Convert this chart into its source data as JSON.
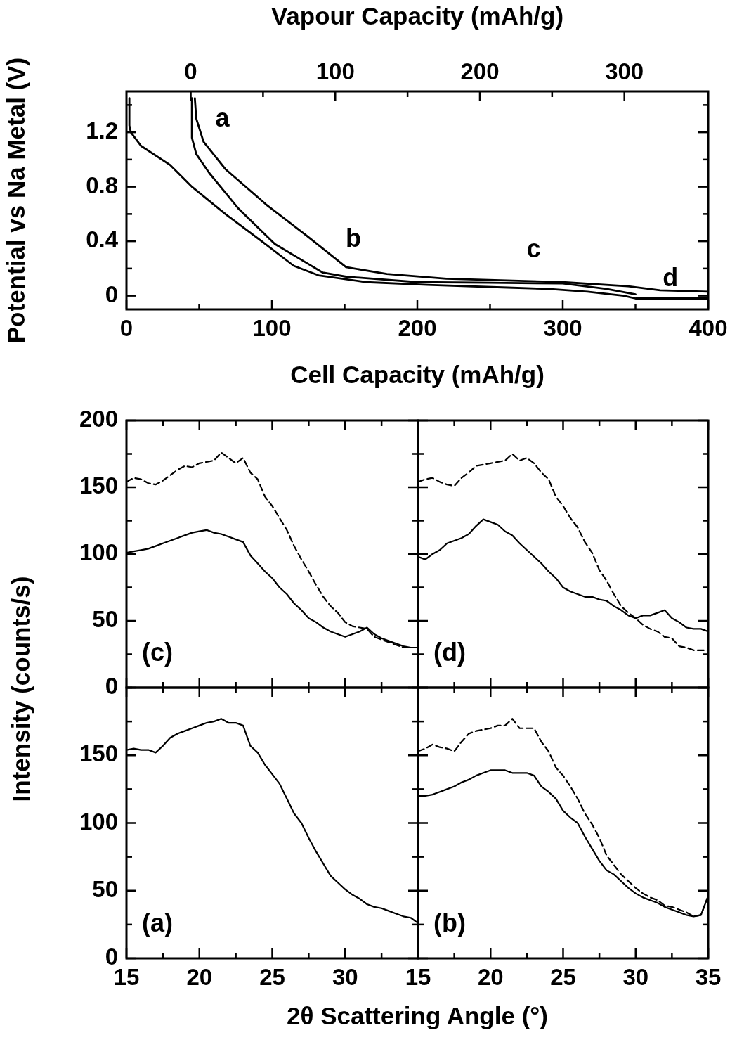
{
  "chart_data": [
    {
      "type": "line",
      "xlabel": "Cell Capacity (mAh/g)",
      "x2label": "Vapour Capacity (mAh/g)",
      "ylabel": "Potential vs Na Metal (V)",
      "xlim": [
        0,
        400
      ],
      "xticks": [
        0,
        {
          "value": 50,
          "label": null
        },
        100,
        {
          "value": 150,
          "label": null
        },
        200,
        {
          "value": 250,
          "label": null
        },
        300,
        {
          "value": 350,
          "label": null
        },
        400
      ],
      "x2lim": [
        -44.5,
        358
      ],
      "x2ticks": [
        0,
        {
          "value": 50,
          "label": null
        },
        100,
        {
          "value": 150,
          "label": null
        },
        200,
        {
          "value": 250,
          "label": null
        },
        300
      ],
      "ylim": [
        -0.1,
        1.5
      ],
      "yticks": [
        0,
        {
          "value": 0.2,
          "label": null
        },
        0.4,
        {
          "value": 0.6,
          "label": null
        },
        0.8,
        {
          "value": 1.0,
          "label": null
        },
        1.2,
        {
          "value": 1.4,
          "label": null
        }
      ],
      "series": [
        {
          "color": "#000000",
          "x": [
            2,
            2,
            3,
            10,
            30,
            45,
            68,
            93,
            115,
            132,
            165,
            207,
            262,
            290,
            317,
            342,
            350,
            400
          ],
          "values": [
            1.45,
            1.25,
            1.2,
            1.1,
            0.96,
            0.8,
            0.6,
            0.4,
            0.22,
            0.15,
            0.1,
            0.08,
            0.06,
            0.05,
            0.03,
            0.0,
            -0.02,
            -0.02
          ]
        },
        {
          "color": "#000000",
          "x": [
            350,
            330,
            300,
            250,
            200,
            151,
            135,
            124,
            102,
            77,
            57,
            48,
            45,
            45
          ],
          "values": [
            0.01,
            0.05,
            0.09,
            0.095,
            0.1,
            0.14,
            0.17,
            0.24,
            0.38,
            0.64,
            0.9,
            1.04,
            1.16,
            1.45
          ]
        },
        {
          "color": "#000000",
          "x": [
            47,
            48,
            53,
            68,
            96,
            124,
            151,
            179,
            220,
            300,
            345,
            367,
            400
          ],
          "values": [
            1.45,
            1.3,
            1.13,
            0.93,
            0.67,
            0.44,
            0.21,
            0.16,
            0.125,
            0.1,
            0.07,
            0.04,
            0.03
          ]
        }
      ],
      "annotations": [
        "a",
        "b",
        "c",
        "d"
      ]
    },
    {
      "type": "line",
      "ylabel": "Intensity (counts/s)",
      "annotations": [
        "(c)"
      ],
      "tick_labels": "y",
      "x": [
        15,
        15.5,
        16,
        16.5,
        17,
        17.5,
        18,
        18.5,
        19,
        19.5,
        20,
        20.5,
        21,
        21.5,
        22,
        22.5,
        23,
        23.5,
        24,
        24.5,
        25,
        25.5,
        26,
        26.5,
        27,
        27.5,
        28,
        28.5,
        29,
        29.5,
        30,
        30.5,
        31,
        31.5,
        32,
        32.5,
        33,
        33.5,
        34,
        34.5,
        35
      ],
      "xlim": [
        15,
        35
      ],
      "xticks": [
        15,
        {
          "value": 17.5,
          "label": null
        },
        20,
        {
          "value": 22.5,
          "label": null
        },
        25,
        {
          "value": 27.5,
          "label": null
        },
        30,
        {
          "value": 32.5,
          "label": null
        },
        35
      ],
      "ylim": [
        0,
        200
      ],
      "yticks": [
        0,
        {
          "value": 25,
          "label": null
        },
        50,
        {
          "value": 75,
          "label": null
        },
        100,
        {
          "value": 125,
          "label": null
        },
        150,
        {
          "value": 175,
          "label": null
        },
        200
      ],
      "series": [
        {
          "color": "#000000",
          "line_style": "dashed",
          "values": [
            154,
            157,
            156,
            153,
            152,
            155,
            159,
            163,
            166,
            165,
            168,
            169,
            170,
            176,
            172,
            168,
            172,
            161,
            156,
            143,
            136,
            127,
            118,
            106,
            96,
            87,
            77,
            68,
            61,
            56,
            49,
            46,
            45,
            44,
            38,
            36,
            34,
            32,
            30,
            30,
            30
          ]
        },
        {
          "color": "#000000",
          "values": [
            101,
            102,
            103,
            104,
            106,
            108,
            110,
            112,
            114,
            116,
            117,
            118,
            116,
            115,
            113,
            111,
            109,
            99,
            93,
            87,
            82,
            75,
            70,
            63,
            58,
            52,
            49,
            45,
            42,
            40,
            38,
            40,
            42,
            45,
            40,
            37,
            35,
            33,
            31,
            30,
            30
          ]
        }
      ]
    },
    {
      "type": "line",
      "annotations": [
        "(d)"
      ],
      "tick_labels": false,
      "x": [
        15,
        15.5,
        16,
        16.5,
        17,
        17.5,
        18,
        18.5,
        19,
        19.5,
        20,
        20.5,
        21,
        21.5,
        22,
        22.5,
        23,
        23.5,
        24,
        24.5,
        25,
        25.5,
        26,
        26.5,
        27,
        27.5,
        28,
        28.5,
        29,
        29.5,
        30,
        30.5,
        31,
        31.5,
        32,
        32.5,
        33,
        33.5,
        34,
        34.5,
        35
      ],
      "xlim": [
        15,
        35
      ],
      "xticks": [
        15,
        {
          "value": 17.5,
          "label": null
        },
        20,
        {
          "value": 22.5,
          "label": null
        },
        25,
        {
          "value": 27.5,
          "label": null
        },
        30,
        {
          "value": 32.5,
          "label": null
        },
        35
      ],
      "ylim": [
        0,
        200
      ],
      "yticks": [
        0,
        {
          "value": 25,
          "label": null
        },
        50,
        {
          "value": 75,
          "label": null
        },
        100,
        {
          "value": 125,
          "label": null
        },
        150,
        {
          "value": 175,
          "label": null
        },
        200
      ],
      "series": [
        {
          "color": "#000000",
          "line_style": "dashed",
          "values": [
            154,
            156,
            157,
            154,
            152,
            151,
            157,
            161,
            166,
            167,
            168,
            169,
            170,
            175,
            170,
            172,
            168,
            161,
            156,
            143,
            136,
            127,
            120,
            109,
            101,
            88,
            80,
            70,
            61,
            56,
            52,
            47,
            44,
            42,
            38,
            37,
            31,
            30,
            28,
            28,
            28
          ]
        },
        {
          "color": "#000000",
          "values": [
            98,
            96,
            100,
            103,
            108,
            110,
            112,
            115,
            121,
            126,
            124,
            122,
            117,
            114,
            108,
            103,
            98,
            93,
            87,
            82,
            75,
            72,
            70,
            68,
            68,
            66,
            65,
            61,
            58,
            54,
            52,
            54,
            54,
            56,
            58,
            52,
            49,
            45,
            44,
            44,
            42
          ]
        }
      ]
    },
    {
      "type": "line",
      "annotations": [
        "(a)"
      ],
      "xlabel": "2θ Scattering Angle (°)",
      "x": [
        15,
        15.5,
        16,
        16.5,
        17,
        17.5,
        18,
        18.5,
        19,
        19.5,
        20,
        20.5,
        21,
        21.5,
        22,
        22.5,
        23,
        23.5,
        24,
        24.5,
        25,
        25.5,
        26,
        26.5,
        27,
        27.5,
        28,
        28.5,
        29,
        29.5,
        30,
        30.5,
        31,
        31.5,
        32,
        32.5,
        33,
        33.5,
        34,
        34.5,
        35
      ],
      "xlim": [
        15,
        35
      ],
      "xticks": [
        15,
        {
          "value": 17.5,
          "label": null
        },
        20,
        {
          "value": 22.5,
          "label": null
        },
        25,
        {
          "value": 27.5,
          "label": null
        },
        30,
        {
          "value": 32.5,
          "label": null
        },
        {
          "value": 35,
          "label": null
        }
      ],
      "ylim": [
        0,
        200
      ],
      "yticks": [
        0,
        {
          "value": 25,
          "label": null
        },
        50,
        {
          "value": 75,
          "label": null
        },
        100,
        {
          "value": 125,
          "label": null
        },
        150,
        {
          "value": 175,
          "label": null
        },
        {
          "value": 200,
          "label": null
        }
      ],
      "series": [
        {
          "color": "#000000",
          "values": [
            154,
            155,
            154,
            154,
            152,
            157,
            163,
            166,
            168,
            170,
            172,
            174,
            175,
            177,
            174,
            174,
            172,
            157,
            152,
            143,
            136,
            129,
            118,
            107,
            100,
            89,
            79,
            70,
            61,
            56,
            51,
            47,
            44,
            40,
            38,
            37,
            35,
            33,
            31,
            30,
            26
          ]
        }
      ]
    },
    {
      "type": "line",
      "annotations": [
        "(b)"
      ],
      "tick_labels": "x",
      "x": [
        15,
        15.5,
        16,
        16.5,
        17,
        17.5,
        18,
        18.5,
        19,
        19.5,
        20,
        20.5,
        21,
        21.5,
        22,
        22.5,
        23,
        23.5,
        24,
        24.5,
        25,
        25.5,
        26,
        26.5,
        27,
        27.5,
        28,
        28.5,
        29,
        29.5,
        30,
        30.5,
        31,
        31.5,
        32,
        32.5,
        33,
        33.5,
        34,
        34.5,
        35
      ],
      "xlim": [
        15,
        35
      ],
      "xticks": [
        15,
        {
          "value": 17.5,
          "label": null
        },
        20,
        {
          "value": 22.5,
          "label": null
        },
        25,
        {
          "value": 27.5,
          "label": null
        },
        30,
        {
          "value": 32.5,
          "label": null
        },
        35
      ],
      "ylim": [
        0,
        200
      ],
      "yticks": [
        0,
        {
          "value": 25,
          "label": null
        },
        50,
        {
          "value": 75,
          "label": null
        },
        100,
        {
          "value": 125,
          "label": null
        },
        150,
        {
          "value": 175,
          "label": null
        },
        200
      ],
      "series": [
        {
          "color": "#000000",
          "line_style": "dashed",
          "values": [
            153,
            155,
            158,
            156,
            155,
            153,
            160,
            166,
            168,
            169,
            170,
            172,
            172,
            177,
            170,
            170,
            170,
            160,
            153,
            141,
            135,
            127,
            118,
            107,
            99,
            89,
            76,
            69,
            62,
            57,
            52,
            48,
            45,
            43,
            39,
            38,
            36,
            34,
            31,
            32,
            46
          ]
        },
        {
          "color": "#000000",
          "values": [
            120,
            120,
            121,
            123,
            125,
            127,
            130,
            132,
            135,
            137,
            139,
            139,
            139,
            137,
            137,
            137,
            135,
            127,
            123,
            118,
            109,
            104,
            100,
            90,
            81,
            72,
            65,
            62,
            57,
            52,
            48,
            45,
            43,
            41,
            38,
            36,
            34,
            32,
            31,
            32,
            46
          ]
        }
      ]
    }
  ]
}
